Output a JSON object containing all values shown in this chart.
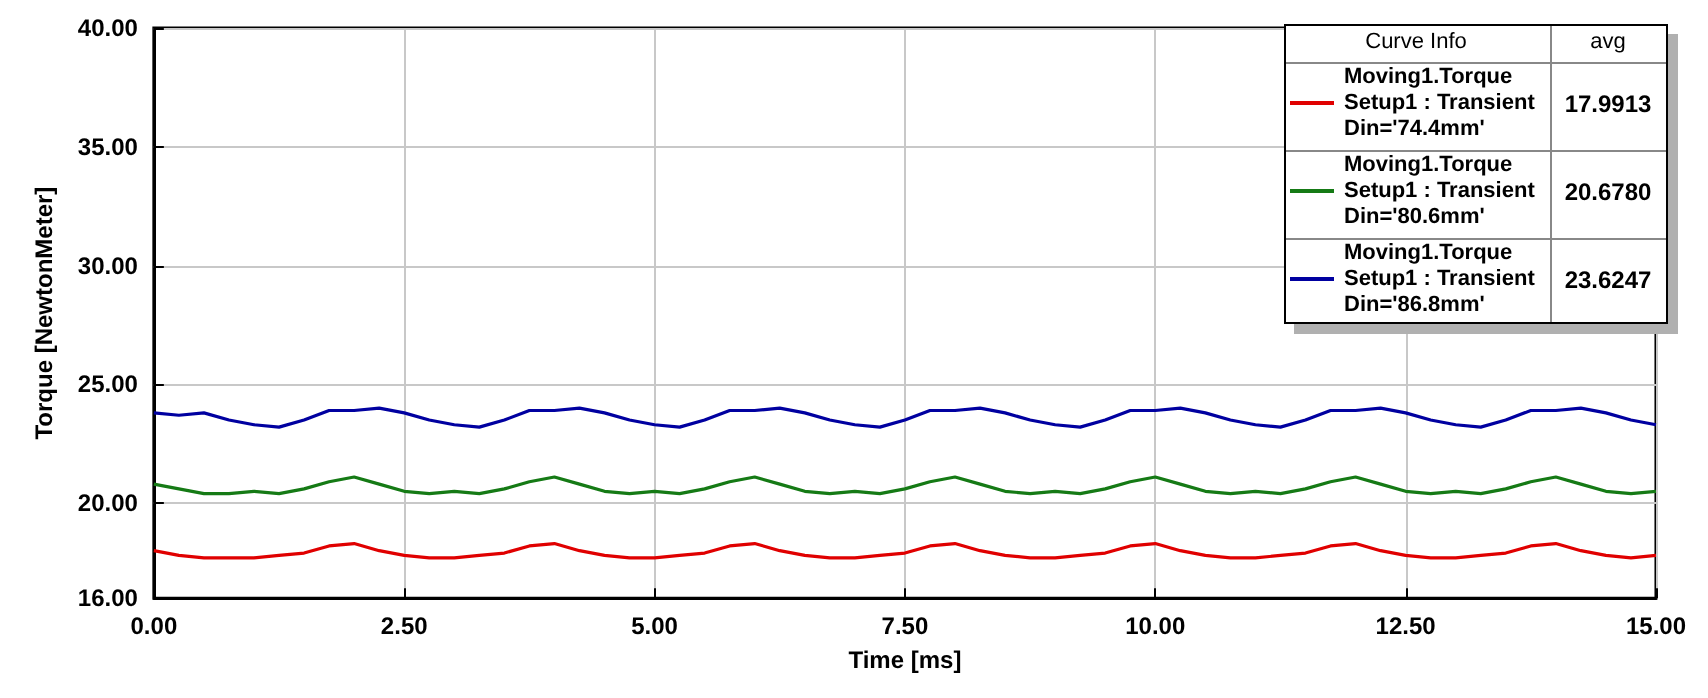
{
  "chart_data": {
    "type": "line",
    "xlabel": "Time [ms]",
    "ylabel": "Torque [NewtonMeter]",
    "legend_title": "Curve Info",
    "annotations": [
      "avg",
      "17.9913",
      "20.6780",
      "23.6247"
    ],
    "x": [
      0,
      0.25,
      0.5,
      0.75,
      1,
      1.25,
      1.5,
      1.75,
      2,
      2.25,
      2.5,
      2.75,
      3,
      3.25,
      3.5,
      3.75,
      4,
      4.25,
      4.5,
      4.75,
      5,
      5.25,
      5.5,
      5.75,
      6,
      6.25,
      6.5,
      6.75,
      7,
      7.25,
      7.5,
      7.75,
      8,
      8.25,
      8.5,
      8.75,
      9,
      9.25,
      9.5,
      9.75,
      10,
      10.25,
      10.5,
      10.75,
      11,
      11.25,
      11.5,
      11.75,
      12,
      12.25,
      12.5,
      12.75,
      13,
      13.25,
      13.5,
      13.75,
      14,
      14.25,
      14.5,
      14.75,
      15
    ],
    "series": [
      {
        "name": "Moving1.Torque\nSetup1 : Transient\nDin='74.4mm'",
        "color": "#e00000",
        "values": [
          18.0,
          17.8,
          17.7,
          17.7,
          17.7,
          17.8,
          17.9,
          18.2,
          18.3,
          18.0,
          17.8,
          17.7,
          17.7,
          17.8,
          17.9,
          18.2,
          18.3,
          18.0,
          17.8,
          17.7,
          17.7,
          17.8,
          17.9,
          18.2,
          18.3,
          18.0,
          17.8,
          17.7,
          17.7,
          17.8,
          17.9,
          18.2,
          18.3,
          18.0,
          17.8,
          17.7,
          17.7,
          17.8,
          17.9,
          18.2,
          18.3,
          18.0,
          17.8,
          17.7,
          17.7,
          17.8,
          17.9,
          18.2,
          18.3,
          18.0,
          17.8,
          17.7,
          17.7,
          17.8,
          17.9,
          18.2,
          18.3,
          18.0,
          17.8,
          17.7,
          17.8
        ]
      },
      {
        "name": "Moving1.Torque\nSetup1 : Transient\nDin='80.6mm'",
        "color": "#157a15",
        "values": [
          20.8,
          20.6,
          20.4,
          20.4,
          20.5,
          20.4,
          20.6,
          20.9,
          21.1,
          20.8,
          20.5,
          20.4,
          20.5,
          20.4,
          20.6,
          20.9,
          21.1,
          20.8,
          20.5,
          20.4,
          20.5,
          20.4,
          20.6,
          20.9,
          21.1,
          20.8,
          20.5,
          20.4,
          20.5,
          20.4,
          20.6,
          20.9,
          21.1,
          20.8,
          20.5,
          20.4,
          20.5,
          20.4,
          20.6,
          20.9,
          21.1,
          20.8,
          20.5,
          20.4,
          20.5,
          20.4,
          20.6,
          20.9,
          21.1,
          20.8,
          20.5,
          20.4,
          20.5,
          20.4,
          20.6,
          20.9,
          21.1,
          20.8,
          20.5,
          20.4,
          20.5
        ]
      },
      {
        "name": "Moving1.Torque\nSetup1 : Transient\nDin='86.8mm'",
        "color": "#0000a0",
        "values": [
          23.8,
          23.7,
          23.8,
          23.5,
          23.3,
          23.2,
          23.5,
          23.9,
          23.9,
          24.0,
          23.8,
          23.5,
          23.3,
          23.2,
          23.5,
          23.9,
          23.9,
          24.0,
          23.8,
          23.5,
          23.3,
          23.2,
          23.5,
          23.9,
          23.9,
          24.0,
          23.8,
          23.5,
          23.3,
          23.2,
          23.5,
          23.9,
          23.9,
          24.0,
          23.8,
          23.5,
          23.3,
          23.2,
          23.5,
          23.9,
          23.9,
          24.0,
          23.8,
          23.5,
          23.3,
          23.2,
          23.5,
          23.9,
          23.9,
          24.0,
          23.8,
          23.5,
          23.3,
          23.2,
          23.5,
          23.9,
          23.9,
          24.0,
          23.8,
          23.5,
          23.3
        ]
      }
    ],
    "xlim": [
      0,
      15
    ],
    "xticks": [
      {
        "value": 0,
        "label": "0.00"
      },
      {
        "value": 2.5,
        "label": "2.50"
      },
      {
        "value": 5,
        "label": "5.00"
      },
      {
        "value": 7.5,
        "label": "7.50"
      },
      {
        "value": 10,
        "label": "10.00"
      },
      {
        "value": 12.5,
        "label": "12.50"
      },
      {
        "value": 15,
        "label": "15.00"
      }
    ],
    "ylim": [
      16,
      40
    ],
    "yticks": [
      {
        "value": 16,
        "label": "16.00"
      },
      {
        "value": 20,
        "label": "20.00"
      },
      {
        "value": 25,
        "label": "25.00"
      },
      {
        "value": 30,
        "label": "30.00"
      },
      {
        "value": 35,
        "label": "35.00"
      },
      {
        "value": 40,
        "label": "40.00"
      }
    ],
    "grid": true,
    "legend": "top right",
    "marker": "none",
    "line_style": "solid"
  }
}
